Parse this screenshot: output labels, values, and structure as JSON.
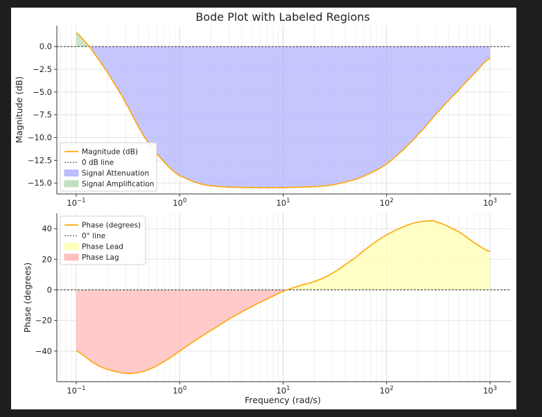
{
  "chart_data": {
    "type": "line",
    "title": "Bode Plot with Labeled Regions",
    "xlabel": "Frequency (rad/s)",
    "xscale": "log",
    "xlim": [
      0.1,
      1000
    ],
    "x_tick_exponents": [
      "−1",
      "0",
      "1",
      "2",
      "3"
    ],
    "x_tick_base": "10",
    "grid": true,
    "panels": [
      {
        "id": "magnitude",
        "ylabel": "Magnitude (dB)",
        "ylim": [
          -16.2,
          2.3
        ],
        "yticks": [
          0.0,
          -2.5,
          -5.0,
          -7.5,
          -10.0,
          -12.5,
          -15.0
        ],
        "ytick_labels": [
          "0.0",
          "−2.5",
          "−5.0",
          "−7.5",
          "−10.0",
          "−12.5",
          "−15.0"
        ],
        "reference_line": 0,
        "legend_position": "lower-left",
        "legend": [
          {
            "label": "Magnitude (dB)",
            "kind": "line",
            "color": "#ffa500"
          },
          {
            "label": "0 dB line",
            "kind": "dashed",
            "color": "#333333"
          },
          {
            "label": "Signal Attenuation",
            "kind": "patch",
            "color": "#b0b0ff"
          },
          {
            "label": "Signal Amplification",
            "kind": "patch",
            "color": "#b5dcb5"
          }
        ],
        "series": [
          {
            "name": "Magnitude (dB)",
            "color": "#ffa500",
            "x": [
              0.1,
              0.12,
              0.15,
              0.2,
              0.25,
              0.3,
              0.4,
              0.5,
              0.6,
              0.8,
              1,
              1.5,
              2,
              3,
              5,
              10,
              20,
              30,
              50,
              70,
              100,
              150,
              200,
              300,
              500,
              700,
              1000
            ],
            "y": [
              1.5,
              0.6,
              -0.8,
              -2.8,
              -4.6,
              -6.2,
              -8.8,
              -10.6,
              -11.8,
              -13.3,
              -14.2,
              -15.0,
              -15.3,
              -15.45,
              -15.5,
              -15.5,
              -15.4,
              -15.2,
              -14.6,
              -13.9,
              -12.9,
              -11.2,
              -9.7,
              -7.4,
              -4.8,
              -3.0,
              -1.3
            ]
          }
        ],
        "fills": [
          {
            "label": "Signal Attenuation",
            "color": "#b0b0ff",
            "where": "below 0"
          },
          {
            "label": "Signal Amplification",
            "color": "#b5dcb5",
            "where": "above 0"
          }
        ]
      },
      {
        "id": "phase",
        "ylabel": "Phase (degrees)",
        "ylim": [
          -60,
          50
        ],
        "yticks": [
          40,
          20,
          0,
          -20,
          -40
        ],
        "ytick_labels": [
          "40",
          "20",
          "0",
          "−20",
          "−40"
        ],
        "reference_line": 0,
        "legend_position": "upper-left",
        "legend": [
          {
            "label": "Phase (degrees)",
            "kind": "line",
            "color": "#ffa500"
          },
          {
            "label": "0° line",
            "kind": "dashed",
            "color": "#333333"
          },
          {
            "label": "Phase Lead",
            "kind": "patch",
            "color": "#ffffb0"
          },
          {
            "label": "Phase Lag",
            "kind": "patch",
            "color": "#ffb5b5"
          }
        ],
        "series": [
          {
            "name": "Phase (degrees)",
            "color": "#ffa500",
            "x": [
              0.1,
              0.15,
              0.2,
              0.3,
              0.4,
              0.5,
              0.7,
              1,
              1.5,
              2,
              3,
              5,
              7,
              10,
              15,
              20,
              30,
              50,
              70,
              100,
              150,
              200,
              250,
              300,
              500,
              700,
              1000
            ],
            "y": [
              -40,
              -48,
              -52,
              -54.5,
              -54,
              -52,
              -47,
              -40,
              -32,
              -26.5,
              -19,
              -11,
              -6,
              -1,
              3,
              5.5,
              11,
              21,
              29,
              36,
              41.5,
              44.2,
              45,
              44.5,
              38,
              31,
              25
            ]
          }
        ],
        "fills": [
          {
            "label": "Phase Lead",
            "color": "#ffffb0",
            "where": "above 0"
          },
          {
            "label": "Phase Lag",
            "color": "#ffb5b5",
            "where": "below 0"
          }
        ]
      }
    ]
  }
}
